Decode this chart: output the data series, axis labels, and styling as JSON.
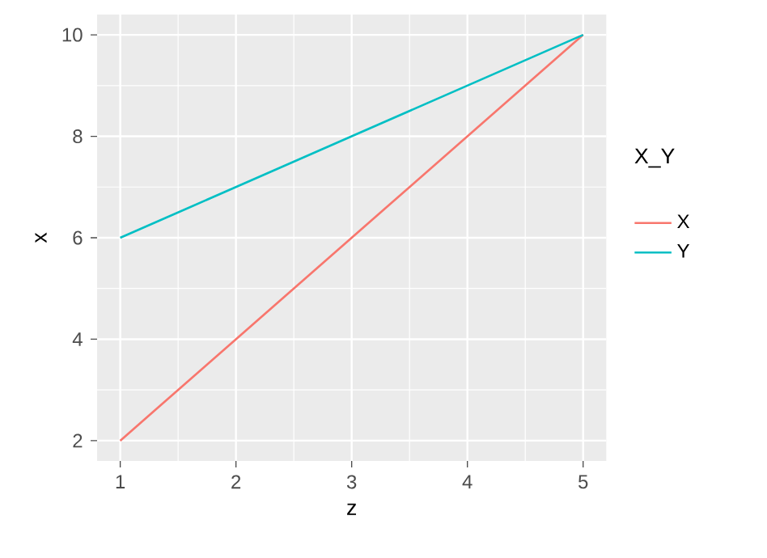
{
  "chart_data": {
    "type": "line",
    "xlabel": "z",
    "ylabel": "x",
    "legend_title": "X_Y",
    "legend": "right",
    "grid": true,
    "x": [
      1,
      2,
      3,
      4,
      5
    ],
    "series": [
      {
        "name": "X",
        "color": "#f8766d",
        "values": [
          2,
          4,
          6,
          8,
          10
        ]
      },
      {
        "name": "Y",
        "color": "#00bfc4",
        "values": [
          6,
          7,
          8,
          9,
          10
        ]
      }
    ],
    "xlim": [
      0.8,
      5.2
    ],
    "ylim": [
      1.6,
      10.4
    ],
    "xticks": [
      1,
      2,
      3,
      4,
      5
    ],
    "yticks": [
      2,
      4,
      6,
      8,
      10
    ]
  }
}
